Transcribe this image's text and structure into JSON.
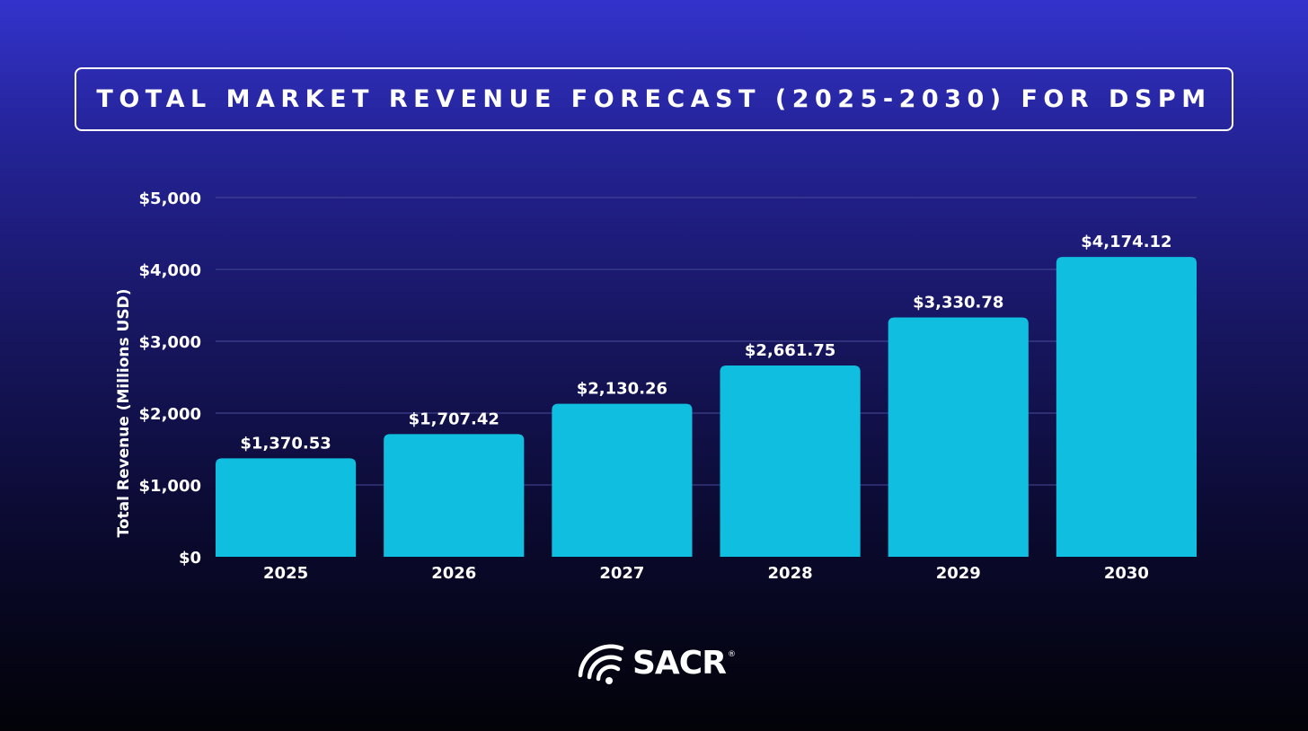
{
  "title": "TOTAL MARKET REVENUE FORECAST (2025-2030) FOR DSPM",
  "chart_data": {
    "type": "bar",
    "title": "TOTAL MARKET REVENUE FORECAST (2025-2030) FOR DSPM",
    "xlabel": "",
    "ylabel": "Total Revenue (Millions USD)",
    "categories": [
      "2025",
      "2026",
      "2027",
      "2028",
      "2029",
      "2030"
    ],
    "values": [
      1370.53,
      1707.42,
      2130.26,
      2661.75,
      3330.78,
      4174.12
    ],
    "data_labels": [
      "$1,370.53",
      "$1,707.42",
      "$2,130.26",
      "$2,661.75",
      "$3,330.78",
      "$4,174.12"
    ],
    "ylim": [
      0,
      5000
    ],
    "yticks": [
      0,
      1000,
      2000,
      3000,
      4000,
      5000
    ],
    "ytick_labels": [
      "$0",
      "$1,000",
      "$2,000",
      "$3,000",
      "$4,000",
      "$5,000"
    ],
    "grid": true,
    "bar_color": "#10bfdf",
    "grid_color": "#4a4a98"
  },
  "logo": {
    "text": "SACR",
    "registered": "®",
    "icon": "wifi-signal-icon"
  }
}
